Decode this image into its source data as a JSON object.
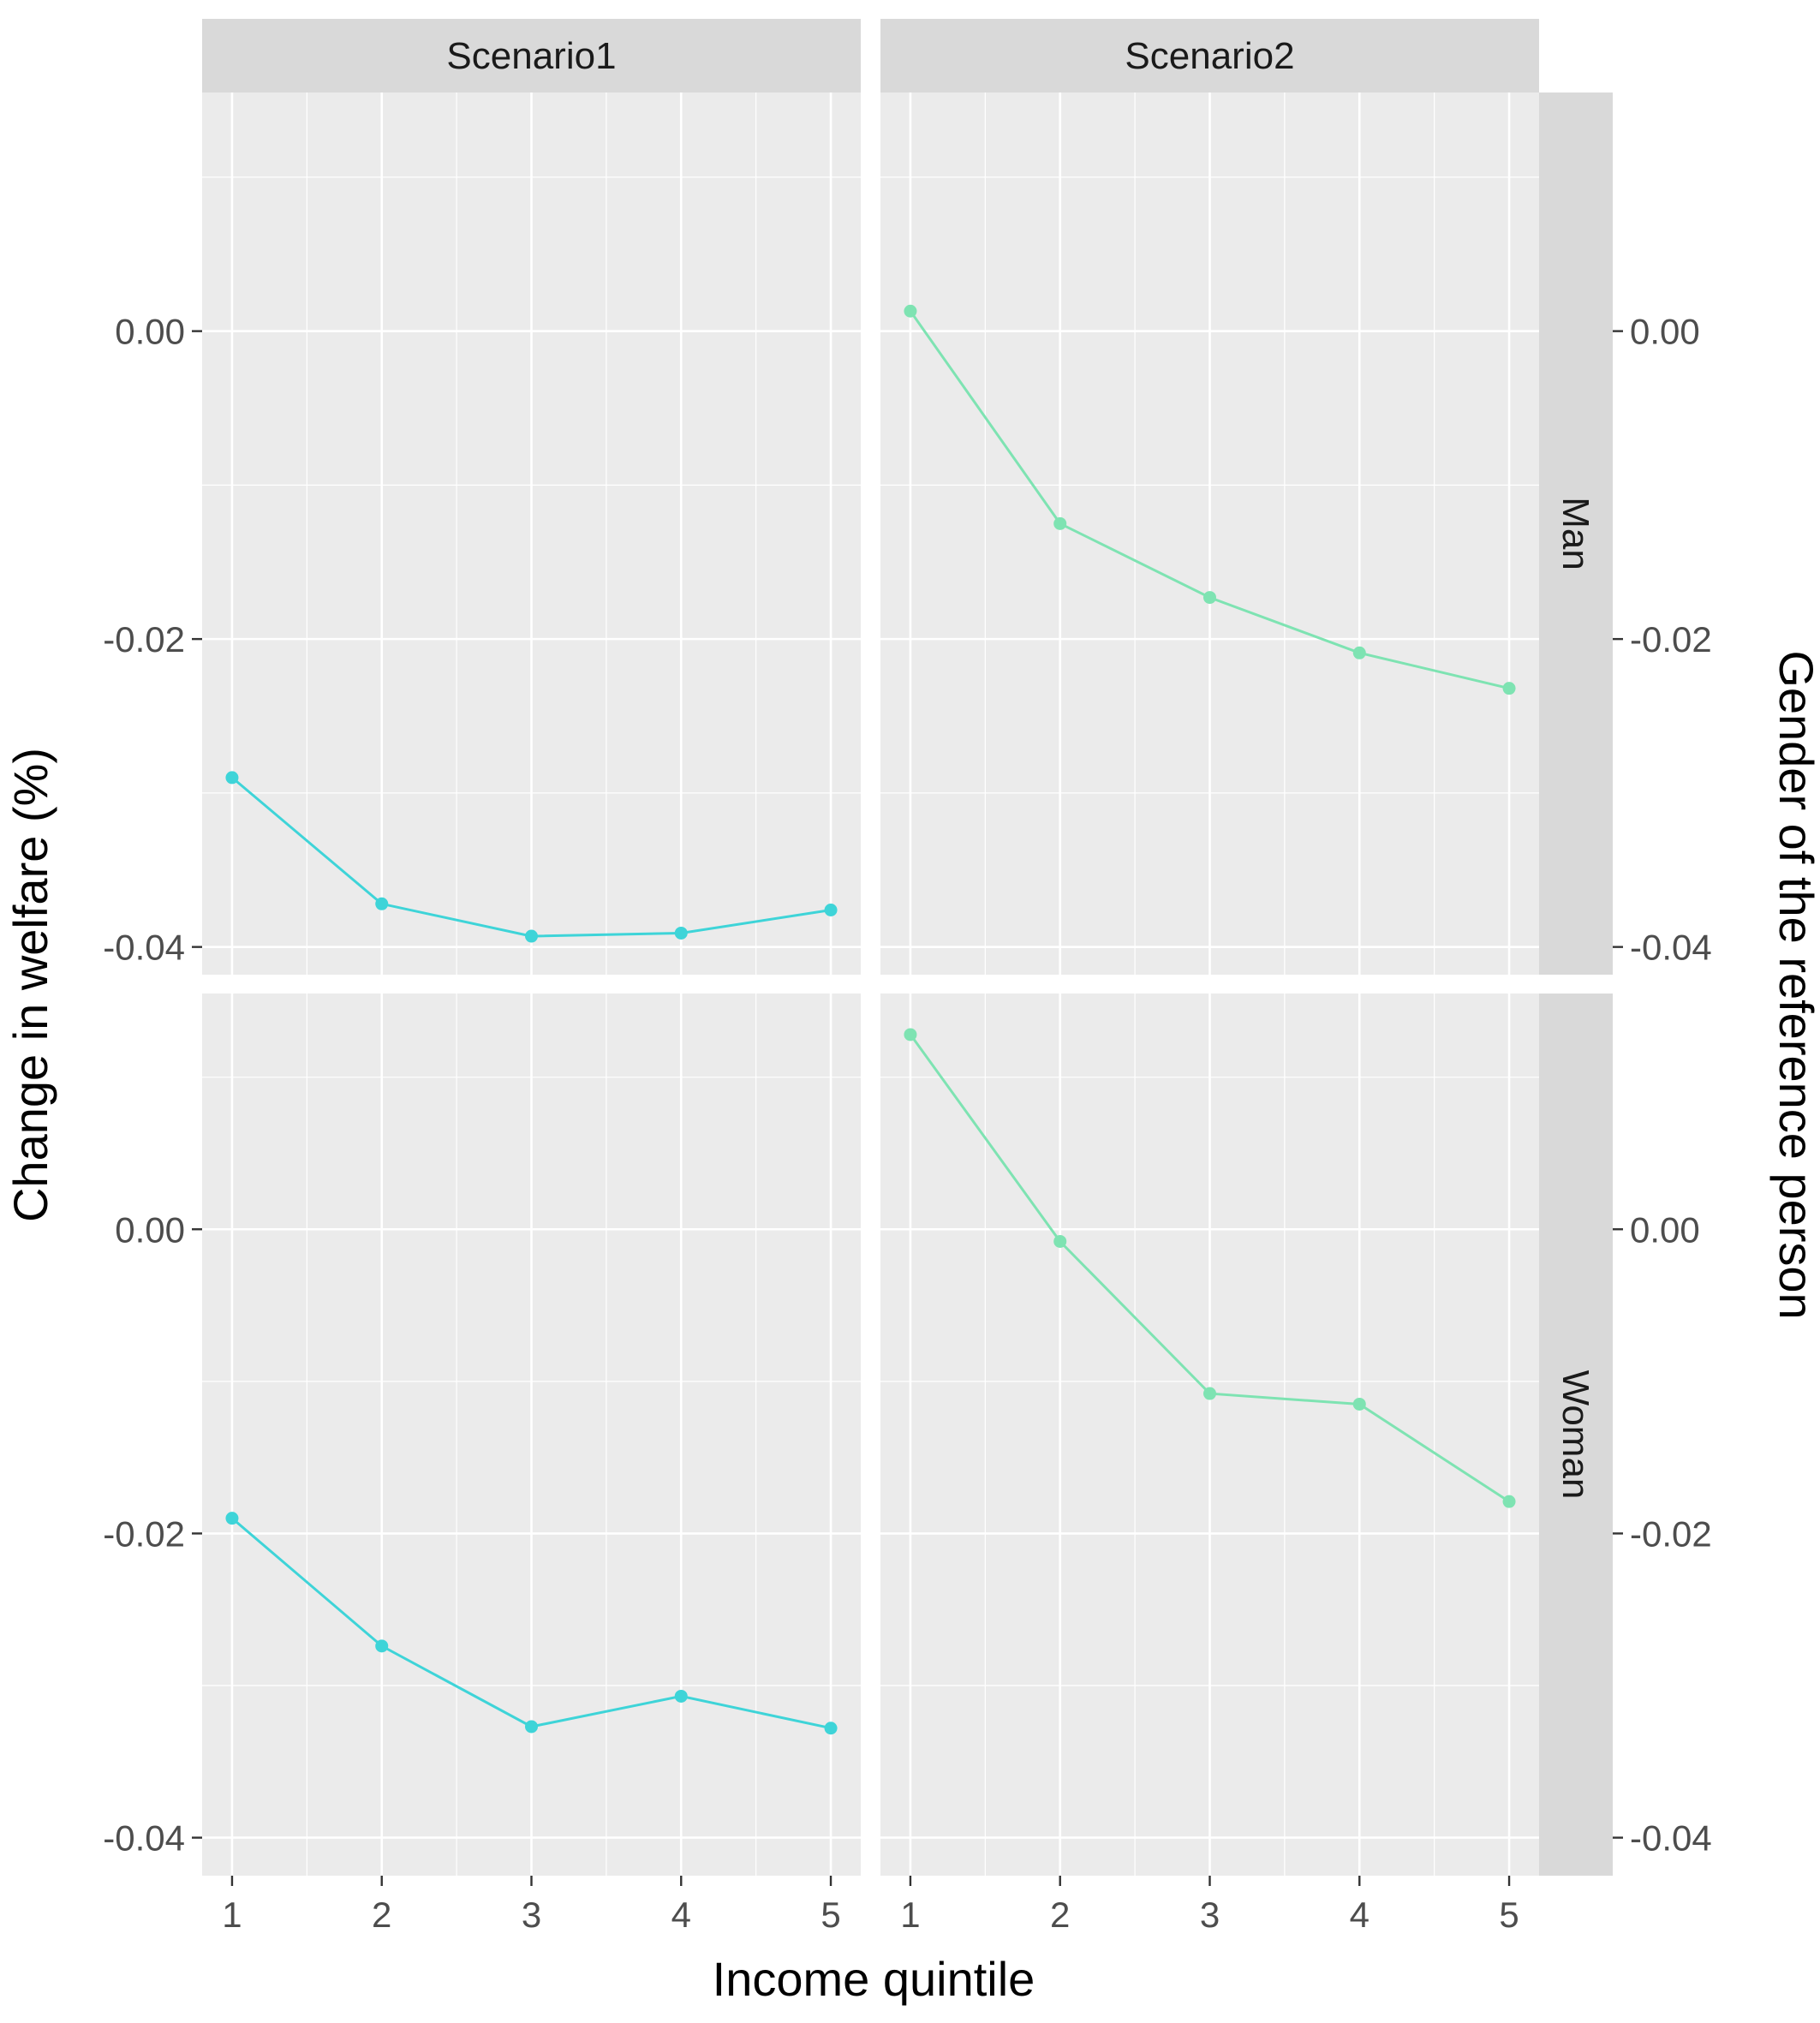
{
  "chart_data": {
    "type": "line",
    "title": "",
    "xlabel": "Income quintile",
    "ylabel": "Change in welfare (%)",
    "facet_row_label": "Gender of the reference person",
    "columns": [
      "Scenario1",
      "Scenario2"
    ],
    "rows": [
      "Man",
      "Woman"
    ],
    "x": [
      1,
      2,
      3,
      4,
      5
    ],
    "x_tick_labels": [
      "1",
      "2",
      "3",
      "4",
      "5"
    ],
    "y_tick_labels": [
      "0.00",
      "-0.02",
      "-0.04"
    ],
    "y_ticks": [
      0.0,
      -0.02,
      -0.04
    ],
    "rows_ylim": {
      "Man": [
        -0.0418,
        0.0155
      ],
      "Woman": [
        -0.0425,
        0.0155
      ]
    },
    "grid": true,
    "legend": "none",
    "colors": {
      "Scenario1": "#3ED4D8",
      "Scenario2": "#7EE3B2"
    },
    "panels": [
      {
        "row": "Man",
        "column": "Scenario1",
        "values": [
          -0.029,
          -0.0372,
          -0.0393,
          -0.0391,
          -0.0376
        ]
      },
      {
        "row": "Man",
        "column": "Scenario2",
        "values": [
          0.0013,
          -0.0125,
          -0.0173,
          -0.0209,
          -0.0232
        ]
      },
      {
        "row": "Woman",
        "column": "Scenario1",
        "values": [
          -0.019,
          -0.0274,
          -0.0327,
          -0.0307,
          -0.0328
        ]
      },
      {
        "row": "Woman",
        "column": "Scenario2",
        "values": [
          0.0128,
          -0.0008,
          -0.0108,
          -0.0115,
          -0.0179
        ]
      }
    ]
  }
}
